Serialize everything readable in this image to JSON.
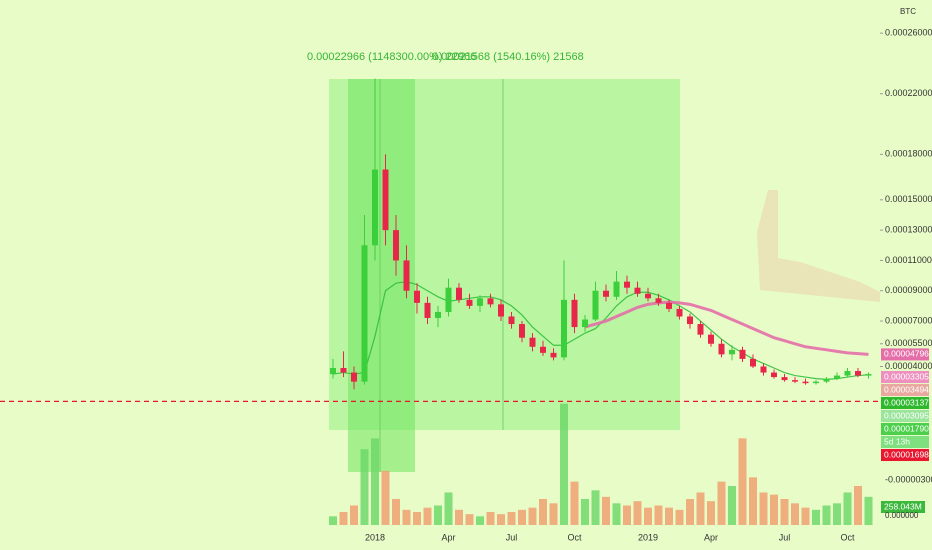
{
  "chart_data": {
    "type": "candlestick",
    "unit": "BTC",
    "annotations": [
      "0.00022966 (1148300.00%) 22966",
      "0.00021568 (1540.16%) 21568"
    ],
    "categories": [
      null,
      null,
      null,
      null,
      "2018",
      null,
      null,
      null,
      null,
      null,
      null,
      "Apr",
      null,
      null,
      null,
      null,
      null,
      "Jul",
      null,
      null,
      null,
      null,
      null,
      "Oct",
      null,
      null,
      null,
      null,
      null,
      null,
      "2019",
      null,
      null,
      null,
      null,
      null,
      "Apr",
      null,
      null,
      null,
      null,
      null,
      null,
      "Jul",
      null,
      null,
      null,
      null,
      null,
      "Oct",
      null,
      null
    ],
    "open": [
      3.5e-05,
      3.9e-05,
      3.6e-05,
      3e-05,
      0.00012,
      0.00017,
      0.00013,
      0.00011,
      9e-05,
      8.2e-05,
      7.2e-05,
      7.6e-05,
      9.2e-05,
      8.4e-05,
      8e-05,
      8.5e-05,
      8.1e-05,
      7.3e-05,
      6.8e-05,
      5.9e-05,
      5.3e-05,
      4.9e-05,
      4.6e-05,
      8.4e-05,
      6.6e-05,
      7.1e-05,
      9e-05,
      8.6e-05,
      9.6e-05,
      9.2e-05,
      8.8e-05,
      8.5e-05,
      8.2e-05,
      7.8e-05,
      7.3e-05,
      6.8e-05,
      6.1e-05,
      5.5e-05,
      4.8e-05,
      5.1e-05,
      4.5e-05,
      4e-05,
      3.6e-05,
      3.3e-05,
      3.1e-05,
      3e-05,
      2.9e-05,
      3e-05,
      3.2e-05,
      3.4e-05,
      3.7e-05,
      3.4e-05
    ],
    "high": [
      4.5e-05,
      5e-05,
      4e-05,
      0.00014,
      0.00023,
      0.00018,
      0.00014,
      0.00012,
      9.5e-05,
      8.6e-05,
      8e-05,
      9.8e-05,
      9.5e-05,
      8.8e-05,
      8.7e-05,
      8.8e-05,
      8.4e-05,
      7.6e-05,
      7e-05,
      6.2e-05,
      5.7e-05,
      5.2e-05,
      0.00011,
      8.8e-05,
      7.4e-05,
      9.6e-05,
      9.4e-05,
      0.000103,
      0.0001,
      9.6e-05,
      9.2e-05,
      8.8e-05,
      8.4e-05,
      8e-05,
      7.5e-05,
      7e-05,
      6.3e-05,
      5.8e-05,
      5.4e-05,
      5.3e-05,
      4.8e-05,
      4.2e-05,
      3.8e-05,
      3.5e-05,
      3.3e-05,
      3.2e-05,
      3.1e-05,
      3.3e-05,
      3.6e-05,
      3.9e-05,
      3.9e-05,
      3.6e-05
    ],
    "low": [
      3.2e-05,
      3.3e-05,
      2.5e-05,
      2.8e-05,
      0.00011,
      0.00012,
      0.0001,
      8.5e-05,
      7.5e-05,
      6.8e-05,
      6.6e-05,
      7.3e-05,
      8.2e-05,
      7.8e-05,
      7.6e-05,
      7.9e-05,
      7e-05,
      6.5e-05,
      5.6e-05,
      5e-05,
      4.7e-05,
      4.4e-05,
      4.4e-05,
      6.2e-05,
      6.3e-05,
      7e-05,
      8.3e-05,
      8.4e-05,
      8.8e-05,
      8.6e-05,
      8.3e-05,
      8e-05,
      7.6e-05,
      7.1e-05,
      6.5e-05,
      5.9e-05,
      5.3e-05,
      4.6e-05,
      4.4e-05,
      4.3e-05,
      3.9e-05,
      3.4e-05,
      3.2e-05,
      3e-05,
      2.9e-05,
      2.8e-05,
      2.8e-05,
      2.9e-05,
      3.1e-05,
      3.3e-05,
      3.3e-05,
      3.2e-05
    ],
    "close": [
      3.9e-05,
      3.6e-05,
      3e-05,
      0.00012,
      0.00017,
      0.00013,
      0.00011,
      9e-05,
      8.2e-05,
      7.2e-05,
      7.6e-05,
      9.2e-05,
      8.4e-05,
      8e-05,
      8.5e-05,
      8.1e-05,
      7.3e-05,
      6.8e-05,
      5.9e-05,
      5.3e-05,
      4.9e-05,
      4.6e-05,
      8.4e-05,
      6.6e-05,
      7.1e-05,
      9e-05,
      8.6e-05,
      9.6e-05,
      9.2e-05,
      8.8e-05,
      8.5e-05,
      8.2e-05,
      7.8e-05,
      7.3e-05,
      6.8e-05,
      6.1e-05,
      5.5e-05,
      4.8e-05,
      5.1e-05,
      4.5e-05,
      4e-05,
      3.6e-05,
      3.3e-05,
      3.1e-05,
      3e-05,
      2.9e-05,
      3e-05,
      3.2e-05,
      3.4e-05,
      3.7e-05,
      3.4e-05,
      3.5e-05
    ],
    "up_color": "#3ccf3c",
    "down_color": "#e8264a",
    "series": [
      {
        "color": "#2fbf3a",
        "width": 1.2,
        "values": [
          3.5e-05,
          3.6e-05,
          3.5e-05,
          3.6e-05,
          6e-05,
          9e-05,
          9.5e-05,
          9.6e-05,
          9.4e-05,
          9e-05,
          8.6e-05,
          8.3e-05,
          8.4e-05,
          8.5e-05,
          8.6e-05,
          8.6e-05,
          8.4e-05,
          8e-05,
          7.4e-05,
          6.6e-05,
          6e-05,
          5.4e-05,
          5.4e-05,
          5.8e-05,
          6.2e-05,
          6.5e-05,
          7.2e-05,
          8e-05,
          8.6e-05,
          8.9e-05,
          8.9e-05,
          8.7e-05,
          8.4e-05,
          8e-05,
          7.6e-05,
          7e-05,
          6.4e-05,
          5.8e-05,
          5.3e-05,
          4.9e-05,
          4.5e-05,
          4.2e-05,
          3.9e-05,
          3.6e-05,
          3.4e-05,
          3.3e-05,
          3.2e-05,
          3.15e-05,
          3.2e-05,
          3.3e-05,
          3.4e-05,
          3.45e-05
        ]
      },
      {
        "color": "#e46fa8",
        "width": 3,
        "values": [
          null,
          null,
          null,
          null,
          null,
          null,
          null,
          null,
          null,
          null,
          null,
          null,
          null,
          null,
          null,
          null,
          null,
          null,
          null,
          null,
          null,
          null,
          null,
          null,
          6.6e-05,
          6.8e-05,
          7e-05,
          7.3e-05,
          7.6e-05,
          7.9e-05,
          8.1e-05,
          8.2e-05,
          8.25e-05,
          8.2e-05,
          8.1e-05,
          7.9e-05,
          7.7e-05,
          7.4e-05,
          7.1e-05,
          6.8e-05,
          6.5e-05,
          6.2e-05,
          5.9e-05,
          5.7e-05,
          5.5e-05,
          5.3e-05,
          5.2e-05,
          5.1e-05,
          5e-05,
          4.9e-05,
          4.85e-05,
          4.8e-05
        ]
      }
    ],
    "volume": {
      "values": [
        40,
        60,
        90,
        350,
        400,
        250,
        120,
        70,
        60,
        80,
        90,
        150,
        70,
        50,
        40,
        60,
        50,
        60,
        70,
        80,
        120,
        100,
        560,
        200,
        120,
        160,
        130,
        100,
        90,
        110,
        80,
        90,
        80,
        70,
        120,
        150,
        110,
        200,
        180,
        400,
        220,
        150,
        140,
        120,
        100,
        80,
        70,
        90,
        100,
        150,
        180,
        130
      ],
      "ylim": [
        0,
        600
      ],
      "up_color": "#6fd86a",
      "down_color": "#eea070",
      "label": "258.043M",
      "axis_labels": [
        "-0.00000300",
        "0.000000"
      ]
    },
    "ylim": [
      -6e-05,
      0.00027
    ],
    "yticks": [
      {
        "value": 0.00026,
        "label": "0.00026000"
      },
      {
        "value": 0.00022,
        "label": "0.00022000"
      },
      {
        "value": 0.00018,
        "label": "0.00018000"
      },
      {
        "value": 0.00015,
        "label": "0.00015000"
      },
      {
        "value": 0.00013,
        "label": "0.00013000"
      },
      {
        "value": 0.00011,
        "label": "0.00011000"
      },
      {
        "value": 9e-05,
        "label": "0.00009000"
      },
      {
        "value": 7e-05,
        "label": "0.00007000"
      },
      {
        "value": 5.5e-05,
        "label": "0.00005500"
      },
      {
        "value": 4e-05,
        "label": "0.00004000"
      }
    ],
    "grid": false,
    "price_labels": [
      {
        "value": 4.796e-05,
        "label": "0.00004796",
        "color": "#e46fa8"
      },
      {
        "value": 3.305e-05,
        "label": "0.00003305",
        "color": "#ef8fbf"
      },
      {
        "value": 3.494e-05,
        "label": "0.00003494",
        "color": "#e8a8a0"
      },
      {
        "value": 3.137e-05,
        "label": "0.00003137",
        "color": "#2eb82e"
      },
      {
        "value": 3.095e-05,
        "label": "0.00003095",
        "color": "#9be49b"
      },
      {
        "value": 1.79e-05,
        "label": "0.00001790",
        "color": "#4cd04c"
      },
      {
        "label": "5d 13h",
        "color": "#7ee07e"
      },
      {
        "value": 1.698e-05,
        "label": "0.00001698",
        "color": "#e8172f"
      }
    ]
  }
}
